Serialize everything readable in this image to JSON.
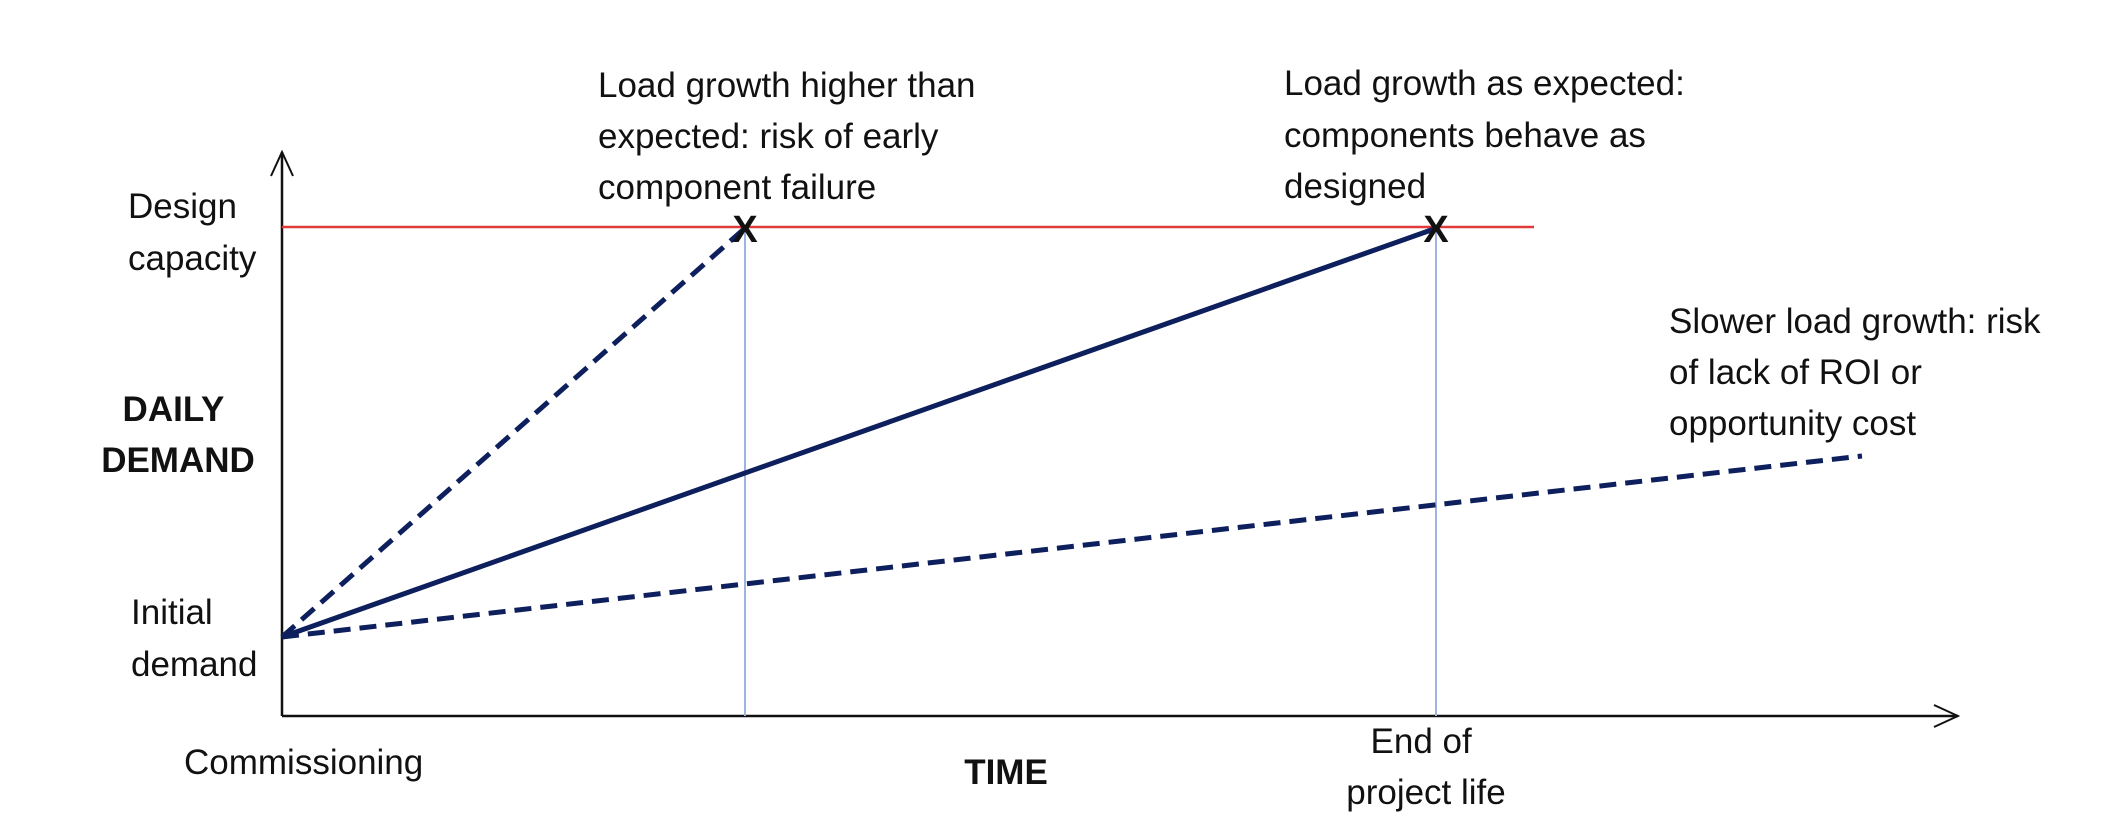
{
  "colors": {
    "line": "#0d1f5c",
    "capacity_line": "#e03a3a",
    "guide": "#9db3e0",
    "axis": "#111111"
  },
  "axes": {
    "y_label": [
      "DAILY",
      "DEMAND"
    ],
    "x_label": "TIME",
    "y_top_label": [
      "Design",
      "capacity"
    ],
    "y_bottom_label": [
      "Initial",
      "demand"
    ],
    "x_start_label": "Commissioning",
    "x_end_label": [
      "End of",
      "project life"
    ]
  },
  "scenarios": [
    {
      "name": "fast",
      "style": "dashed",
      "note": [
        "Load growth higher than",
        "expected: risk of early",
        "component failure"
      ],
      "marker": "X"
    },
    {
      "name": "expected",
      "style": "solid",
      "note": [
        "Load growth as expected:",
        "components behave as",
        "designed"
      ],
      "marker": "X"
    },
    {
      "name": "slow",
      "style": "dashed",
      "note": [
        "Slower load growth: risk",
        "of lack of ROI or",
        "opportunity cost"
      ]
    }
  ]
}
